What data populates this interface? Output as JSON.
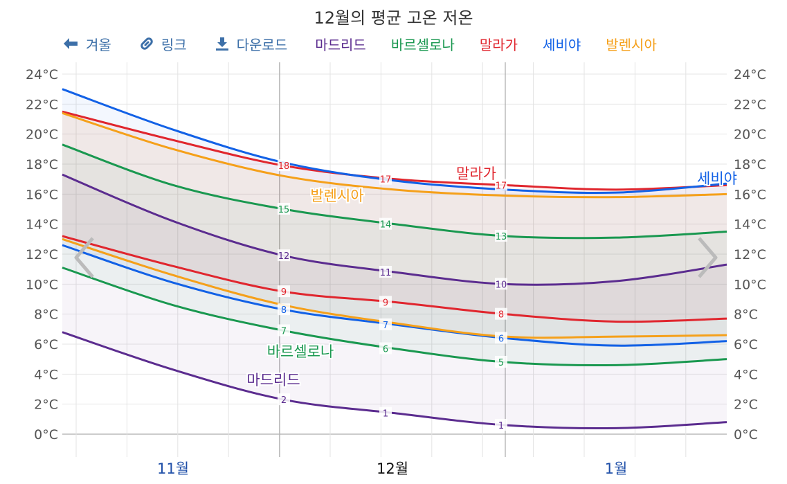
{
  "chart_data": {
    "type": "area",
    "title": "12월의 평균 고온 저온",
    "y_unit": "°C",
    "ylim": [
      0,
      24
    ],
    "y_ticks": [
      "0°C",
      "2°C",
      "4°C",
      "6°C",
      "8°C",
      "10°C",
      "12°C",
      "14°C",
      "16°C",
      "18°C",
      "20°C",
      "22°C",
      "24°C"
    ],
    "x_month_labels": [
      "11월",
      "12월",
      "1월"
    ],
    "highlight_month": "12월",
    "x_dates": [
      "11-01",
      "11-15",
      "12-01",
      "12-15",
      "01-01",
      "01-15",
      "01-31"
    ],
    "series": [
      {
        "name": "마드리드",
        "color": "#5b2c8f",
        "high": [
          17.3,
          14.2,
          11.9,
          10.8,
          10.0,
          10.2,
          11.3
        ],
        "low": [
          6.8,
          4.3,
          2.3,
          1.4,
          0.6,
          0.4,
          0.8
        ]
      },
      {
        "name": "바르셀로나",
        "color": "#1a9850",
        "high": [
          19.3,
          16.6,
          15.0,
          14.0,
          13.2,
          13.1,
          13.5
        ],
        "low": [
          11.1,
          8.6,
          6.9,
          5.7,
          4.8,
          4.6,
          5.0
        ]
      },
      {
        "name": "말라가",
        "color": "#e0262e",
        "high": [
          21.5,
          19.6,
          17.9,
          17.0,
          16.6,
          16.3,
          16.6
        ],
        "low": [
          13.2,
          11.2,
          9.5,
          8.8,
          8.0,
          7.5,
          7.7
        ]
      },
      {
        "name": "세비야",
        "color": "#1261e6",
        "high": [
          23.0,
          20.3,
          18.1,
          16.9,
          16.3,
          16.1,
          16.7
        ],
        "low": [
          12.6,
          10.1,
          8.3,
          7.3,
          6.4,
          5.9,
          6.2
        ]
      },
      {
        "name": "발렌시아",
        "color": "#f5a01a",
        "high": [
          21.4,
          19.0,
          17.2,
          16.3,
          15.9,
          15.8,
          16.0
        ],
        "low": [
          13.0,
          10.6,
          8.6,
          7.4,
          6.5,
          6.5,
          6.6
        ]
      }
    ],
    "point_labels": [
      {
        "series": "말라가",
        "values": [
          "18",
          "17",
          "17"
        ]
      },
      {
        "series": "바르셀로나",
        "values": [
          "15",
          "14",
          "13",
          "7",
          "6",
          "5"
        ]
      },
      {
        "series": "마드리드",
        "values": [
          "12",
          "11",
          "10",
          "2",
          "1",
          "1"
        ]
      },
      {
        "series": "말라가",
        "values": [
          "9",
          "9",
          "8"
        ]
      },
      {
        "series": "세비야",
        "values": [
          "8",
          "7",
          "6"
        ]
      }
    ],
    "grid": true
  },
  "toolbar": {
    "winter": "겨울",
    "link": "링크",
    "download": "다운로드"
  },
  "icons": {
    "winter": "arrow-left-icon",
    "link": "link-icon",
    "download": "download-icon",
    "prev": "chevron-left-icon",
    "next": "chevron-right-icon"
  }
}
